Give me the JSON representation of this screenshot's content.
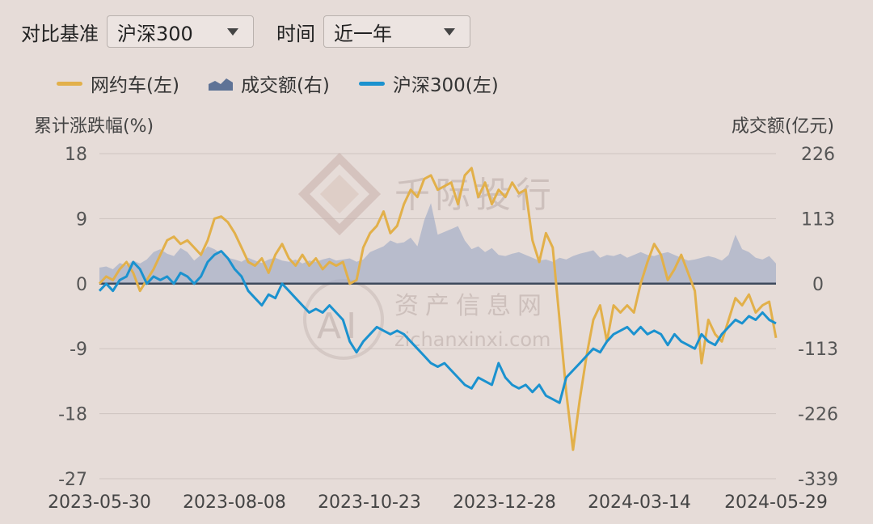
{
  "controls": {
    "benchmark_label": "对比基准",
    "benchmark_value": "沪深300",
    "period_label": "时间",
    "period_value": "近一年"
  },
  "legend": {
    "series1": "网约车(左)",
    "series2": "成交额(右)",
    "series3": "沪深300(左)"
  },
  "axis_titles": {
    "left": "累计涨跌幅(%)",
    "right": "成交额(亿元)"
  },
  "watermark": {
    "brand": "千际投行",
    "site_cn": "资产信息网",
    "site_url": "zichanxinxi.com"
  },
  "colors": {
    "series1": "#e2b04a",
    "series2": "#9aa6c4",
    "series3": "#1b92cf",
    "zero_line": "#3e4a5c",
    "grid": "#cdc3bf"
  },
  "chart_data": {
    "type": "line",
    "left_axis": {
      "ticks": [
        "18",
        "9",
        "0",
        "-9",
        "-18",
        "-27"
      ],
      "range": [
        -27,
        18
      ]
    },
    "right_axis": {
      "ticks": [
        "226",
        "113",
        "0",
        "-113",
        "-226",
        "-339"
      ],
      "range": [
        -339,
        226
      ]
    },
    "x_ticks": [
      "2023-05-30",
      "2023-08-08",
      "2023-10-23",
      "2023-12-28",
      "2024-03-14",
      "2024-05-29"
    ],
    "x_range": [
      0,
      100
    ],
    "series": [
      {
        "name": "网约车(左)",
        "axis": "left",
        "kind": "line",
        "points": [
          [
            0,
            0
          ],
          [
            1,
            1
          ],
          [
            2,
            0.5
          ],
          [
            3,
            2
          ],
          [
            4,
            3
          ],
          [
            5,
            1.5
          ],
          [
            6,
            -1
          ],
          [
            7,
            0.5
          ],
          [
            8,
            2
          ],
          [
            9,
            4
          ],
          [
            10,
            6
          ],
          [
            11,
            6.5
          ],
          [
            12,
            5.5
          ],
          [
            13,
            6
          ],
          [
            14,
            5
          ],
          [
            15,
            4
          ],
          [
            16,
            6
          ],
          [
            17,
            9
          ],
          [
            18,
            9.3
          ],
          [
            19,
            8.5
          ],
          [
            20,
            7
          ],
          [
            21,
            5
          ],
          [
            22,
            3
          ],
          [
            23,
            2.5
          ],
          [
            24,
            3.5
          ],
          [
            25,
            1.5
          ],
          [
            26,
            4
          ],
          [
            27,
            5.5
          ],
          [
            28,
            3.5
          ],
          [
            29,
            2.5
          ],
          [
            30,
            4
          ],
          [
            31,
            2.5
          ],
          [
            32,
            3.5
          ],
          [
            33,
            2
          ],
          [
            34,
            3
          ],
          [
            35,
            2.5
          ],
          [
            36,
            3
          ],
          [
            37,
            0
          ],
          [
            38,
            0.5
          ],
          [
            39,
            5
          ],
          [
            40,
            7
          ],
          [
            41,
            8
          ],
          [
            42,
            10
          ],
          [
            43,
            7
          ],
          [
            44,
            8
          ],
          [
            45,
            11
          ],
          [
            46,
            13
          ],
          [
            47,
            12
          ],
          [
            48,
            14.5
          ],
          [
            49,
            15
          ],
          [
            50,
            13
          ],
          [
            51,
            13.5
          ],
          [
            52,
            14
          ],
          [
            53,
            11
          ],
          [
            54,
            15
          ],
          [
            55,
            16
          ],
          [
            56,
            12
          ],
          [
            57,
            14
          ],
          [
            58,
            11
          ],
          [
            59,
            13
          ],
          [
            60,
            12
          ],
          [
            61,
            14
          ],
          [
            62,
            12.5
          ],
          [
            63,
            13
          ],
          [
            64,
            6
          ],
          [
            65,
            3
          ],
          [
            66,
            7
          ],
          [
            67,
            5
          ],
          [
            68,
            -5
          ],
          [
            69,
            -15
          ],
          [
            70,
            -23
          ],
          [
            71,
            -16
          ],
          [
            72,
            -10
          ],
          [
            73,
            -5
          ],
          [
            74,
            -3
          ],
          [
            75,
            -8
          ],
          [
            76,
            -3
          ],
          [
            77,
            -4
          ],
          [
            78,
            -3
          ],
          [
            79,
            -4
          ],
          [
            80,
            0
          ],
          [
            81,
            3
          ],
          [
            82,
            5.5
          ],
          [
            83,
            4
          ],
          [
            84,
            0.5
          ],
          [
            85,
            2
          ],
          [
            86,
            4
          ],
          [
            87,
            1.5
          ],
          [
            88,
            -1
          ],
          [
            89,
            -11
          ],
          [
            90,
            -5
          ],
          [
            91,
            -7
          ],
          [
            92,
            -8
          ],
          [
            93,
            -5
          ],
          [
            94,
            -2
          ],
          [
            95,
            -3
          ],
          [
            96,
            -1.5
          ],
          [
            97,
            -4
          ],
          [
            98,
            -3
          ],
          [
            99,
            -2.5
          ],
          [
            100,
            -7.5
          ]
        ]
      },
      {
        "name": "成交额(右)",
        "axis": "right",
        "kind": "area",
        "points": [
          [
            0,
            28
          ],
          [
            1,
            30
          ],
          [
            2,
            25
          ],
          [
            3,
            36
          ],
          [
            4,
            32
          ],
          [
            5,
            40
          ],
          [
            6,
            35
          ],
          [
            7,
            42
          ],
          [
            8,
            55
          ],
          [
            9,
            60
          ],
          [
            10,
            52
          ],
          [
            11,
            48
          ],
          [
            12,
            62
          ],
          [
            13,
            55
          ],
          [
            14,
            40
          ],
          [
            15,
            50
          ],
          [
            16,
            65
          ],
          [
            17,
            60
          ],
          [
            18,
            52
          ],
          [
            19,
            45
          ],
          [
            20,
            42
          ],
          [
            21,
            38
          ],
          [
            22,
            45
          ],
          [
            23,
            40
          ],
          [
            24,
            36
          ],
          [
            25,
            42
          ],
          [
            26,
            45
          ],
          [
            27,
            40
          ],
          [
            28,
            38
          ],
          [
            29,
            42
          ],
          [
            30,
            35
          ],
          [
            31,
            40
          ],
          [
            32,
            38
          ],
          [
            33,
            42
          ],
          [
            34,
            45
          ],
          [
            35,
            40
          ],
          [
            36,
            42
          ],
          [
            37,
            44
          ],
          [
            38,
            38
          ],
          [
            39,
            42
          ],
          [
            40,
            55
          ],
          [
            41,
            60
          ],
          [
            42,
            65
          ],
          [
            43,
            75
          ],
          [
            44,
            70
          ],
          [
            45,
            72
          ],
          [
            46,
            80
          ],
          [
            47,
            65
          ],
          [
            48,
            110
          ],
          [
            49,
            140
          ],
          [
            50,
            85
          ],
          [
            51,
            90
          ],
          [
            52,
            95
          ],
          [
            53,
            100
          ],
          [
            54,
            75
          ],
          [
            55,
            60
          ],
          [
            56,
            65
          ],
          [
            57,
            55
          ],
          [
            58,
            62
          ],
          [
            59,
            50
          ],
          [
            60,
            48
          ],
          [
            61,
            52
          ],
          [
            62,
            55
          ],
          [
            63,
            50
          ],
          [
            64,
            45
          ],
          [
            65,
            40
          ],
          [
            66,
            42
          ],
          [
            67,
            38
          ],
          [
            68,
            45
          ],
          [
            69,
            42
          ],
          [
            70,
            48
          ],
          [
            71,
            52
          ],
          [
            72,
            55
          ],
          [
            73,
            58
          ],
          [
            74,
            45
          ],
          [
            75,
            50
          ],
          [
            76,
            48
          ],
          [
            77,
            52
          ],
          [
            78,
            45
          ],
          [
            79,
            50
          ],
          [
            80,
            55
          ],
          [
            81,
            50
          ],
          [
            82,
            48
          ],
          [
            83,
            52
          ],
          [
            84,
            55
          ],
          [
            85,
            50
          ],
          [
            86,
            45
          ],
          [
            87,
            40
          ],
          [
            88,
            42
          ],
          [
            89,
            45
          ],
          [
            90,
            48
          ],
          [
            91,
            45
          ],
          [
            92,
            40
          ],
          [
            93,
            50
          ],
          [
            94,
            85
          ],
          [
            95,
            60
          ],
          [
            96,
            55
          ],
          [
            97,
            45
          ],
          [
            98,
            42
          ],
          [
            99,
            48
          ],
          [
            100,
            35
          ]
        ]
      },
      {
        "name": "沪深300(左)",
        "axis": "left",
        "kind": "line",
        "points": [
          [
            0,
            -1
          ],
          [
            1,
            0
          ],
          [
            2,
            -1
          ],
          [
            3,
            0.5
          ],
          [
            4,
            1
          ],
          [
            5,
            3
          ],
          [
            6,
            2
          ],
          [
            7,
            0
          ],
          [
            8,
            1
          ],
          [
            9,
            0.5
          ],
          [
            10,
            1
          ],
          [
            11,
            0
          ],
          [
            12,
            1.5
          ],
          [
            13,
            1
          ],
          [
            14,
            0
          ],
          [
            15,
            1
          ],
          [
            16,
            3
          ],
          [
            17,
            4
          ],
          [
            18,
            4.5
          ],
          [
            19,
            3.5
          ],
          [
            20,
            2
          ],
          [
            21,
            1
          ],
          [
            22,
            -1
          ],
          [
            23,
            -2
          ],
          [
            24,
            -3
          ],
          [
            25,
            -1.5
          ],
          [
            26,
            -2
          ],
          [
            27,
            0
          ],
          [
            28,
            -1
          ],
          [
            29,
            -2
          ],
          [
            30,
            -3
          ],
          [
            31,
            -4
          ],
          [
            32,
            -3.5
          ],
          [
            33,
            -4
          ],
          [
            34,
            -3
          ],
          [
            35,
            -4
          ],
          [
            36,
            -5
          ],
          [
            37,
            -8
          ],
          [
            38,
            -9.5
          ],
          [
            39,
            -8
          ],
          [
            40,
            -7
          ],
          [
            41,
            -6
          ],
          [
            42,
            -6.5
          ],
          [
            43,
            -7
          ],
          [
            44,
            -6.5
          ],
          [
            45,
            -7
          ],
          [
            46,
            -8
          ],
          [
            47,
            -9
          ],
          [
            48,
            -10
          ],
          [
            49,
            -11
          ],
          [
            50,
            -11.5
          ],
          [
            51,
            -11
          ],
          [
            52,
            -12
          ],
          [
            53,
            -13
          ],
          [
            54,
            -14
          ],
          [
            55,
            -14.5
          ],
          [
            56,
            -13
          ],
          [
            57,
            -13.5
          ],
          [
            58,
            -14
          ],
          [
            59,
            -11
          ],
          [
            60,
            -13
          ],
          [
            61,
            -14
          ],
          [
            62,
            -14.5
          ],
          [
            63,
            -14
          ],
          [
            64,
            -15
          ],
          [
            65,
            -14
          ],
          [
            66,
            -15.5
          ],
          [
            67,
            -16
          ],
          [
            68,
            -16.5
          ],
          [
            69,
            -13
          ],
          [
            70,
            -12
          ],
          [
            71,
            -11
          ],
          [
            72,
            -10
          ],
          [
            73,
            -9
          ],
          [
            74,
            -9.5
          ],
          [
            75,
            -8
          ],
          [
            76,
            -7
          ],
          [
            77,
            -6.5
          ],
          [
            78,
            -6
          ],
          [
            79,
            -7
          ],
          [
            80,
            -6
          ],
          [
            81,
            -7
          ],
          [
            82,
            -6.5
          ],
          [
            83,
            -7
          ],
          [
            84,
            -8.5
          ],
          [
            85,
            -7
          ],
          [
            86,
            -8
          ],
          [
            87,
            -8.5
          ],
          [
            88,
            -9
          ],
          [
            89,
            -7
          ],
          [
            90,
            -8
          ],
          [
            91,
            -8.5
          ],
          [
            92,
            -7
          ],
          [
            93,
            -6
          ],
          [
            94,
            -5
          ],
          [
            95,
            -5.5
          ],
          [
            96,
            -4.5
          ],
          [
            97,
            -5
          ],
          [
            98,
            -4
          ],
          [
            99,
            -5
          ],
          [
            100,
            -5.5
          ]
        ]
      }
    ]
  }
}
